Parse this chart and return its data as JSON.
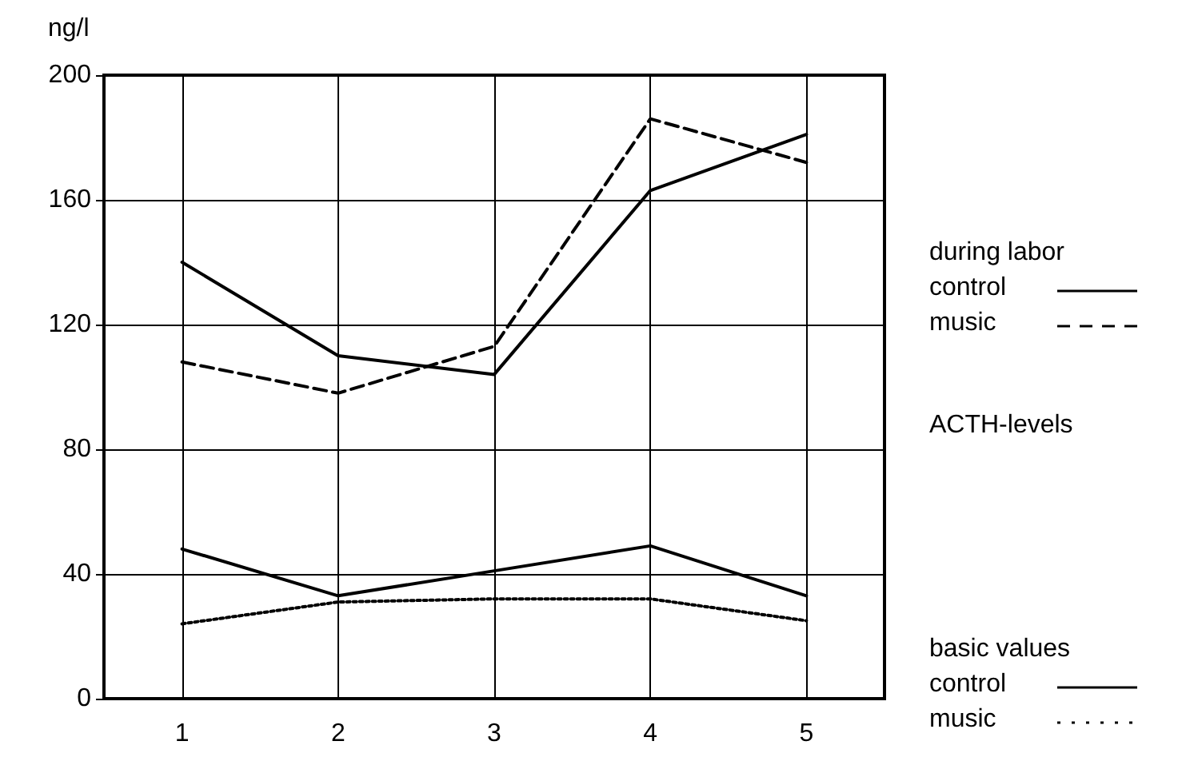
{
  "chart_data": {
    "type": "line",
    "title": "ACTH-levels",
    "ylabel": "ng/l",
    "x": [
      1,
      2,
      3,
      4,
      5
    ],
    "xlim": [
      0.5,
      5.5
    ],
    "xticks": [
      1,
      2,
      3,
      4,
      5
    ],
    "ylim": [
      0,
      200
    ],
    "yticks": [
      0,
      40,
      80,
      120,
      160,
      200
    ],
    "grid": true,
    "marker": "none",
    "legend": "right",
    "annotations": [
      "during labor",
      "basic values"
    ],
    "series": [
      {
        "name": "control",
        "color": "#000000",
        "line_style": "solid",
        "values": [
          140,
          110,
          104,
          163,
          181
        ]
      },
      {
        "name": "music",
        "color": "#000000",
        "line_style": "dashed",
        "values": [
          108,
          98,
          113,
          186,
          172
        ]
      },
      {
        "name": "control",
        "color": "#000000",
        "line_style": "solid",
        "values": [
          48,
          33,
          41,
          49,
          33
        ]
      },
      {
        "name": "music",
        "color": "#000000",
        "line_style": "dotted",
        "values": [
          24,
          31,
          32,
          32,
          25
        ]
      }
    ]
  }
}
